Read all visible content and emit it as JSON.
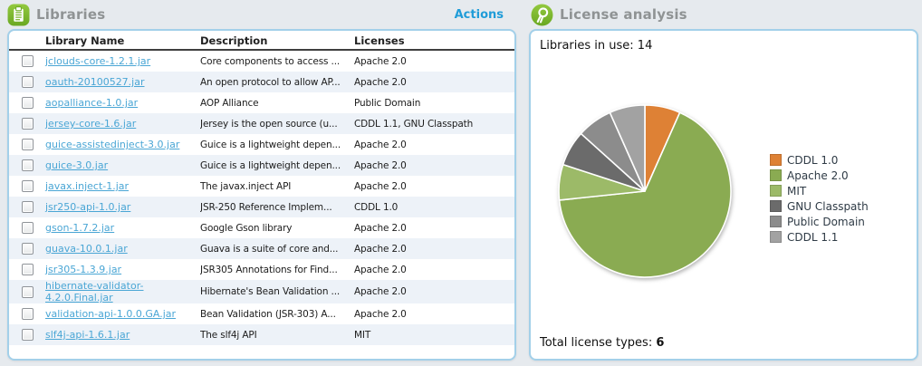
{
  "libraries_panel": {
    "title": "Libraries",
    "actions_label": "Actions",
    "columns": [
      "Library Name",
      "Description",
      "Licenses"
    ],
    "rows": [
      {
        "name": "jclouds-core-1.2.1.jar",
        "description": "Core components to access ...",
        "licenses": "Apache 2.0"
      },
      {
        "name": "oauth-20100527.jar",
        "description": "An open protocol to allow AP...",
        "licenses": "Apache 2.0"
      },
      {
        "name": "aopalliance-1.0.jar",
        "description": "AOP Alliance",
        "licenses": "Public Domain"
      },
      {
        "name": "jersey-core-1.6.jar",
        "description": "Jersey is the open source (u...",
        "licenses": "CDDL 1.1, GNU Classpath"
      },
      {
        "name": "guice-assistedinject-3.0.jar",
        "description": "Guice is a lightweight depen...",
        "licenses": "Apache 2.0"
      },
      {
        "name": "guice-3.0.jar",
        "description": "Guice is a lightweight depen...",
        "licenses": "Apache 2.0"
      },
      {
        "name": "javax.inject-1.jar",
        "description": "The javax.inject API",
        "licenses": "Apache 2.0"
      },
      {
        "name": "jsr250-api-1.0.jar",
        "description": "JSR-250 Reference Implem...",
        "licenses": "CDDL 1.0"
      },
      {
        "name": "gson-1.7.2.jar",
        "description": "Google Gson library",
        "licenses": "Apache 2.0"
      },
      {
        "name": "guava-10.0.1.jar",
        "description": "Guava is a suite of core and...",
        "licenses": "Apache 2.0"
      },
      {
        "name": "jsr305-1.3.9.jar",
        "description": "JSR305 Annotations for Find...",
        "licenses": "Apache 2.0"
      },
      {
        "name": "hibernate-validator-4.2.0.Final.jar",
        "description": "Hibernate's Bean Validation ...",
        "licenses": "Apache 2.0"
      },
      {
        "name": "validation-api-1.0.0.GA.jar",
        "description": "Bean Validation (JSR-303) A...",
        "licenses": "Apache 2.0"
      },
      {
        "name": "slf4j-api-1.6.1.jar",
        "description": "The slf4j API",
        "licenses": "MIT"
      }
    ]
  },
  "license_panel": {
    "title": "License analysis",
    "libraries_in_use_label": "Libraries in use:",
    "libraries_in_use_value": "14",
    "total_label": "Total license types:",
    "total_value": "6"
  },
  "chart_data": {
    "type": "pie",
    "title": "License analysis",
    "labels": [
      "CDDL 1.0",
      "Apache 2.0",
      "MIT",
      "GNU Classpath",
      "Public Domain",
      "CDDL 1.1"
    ],
    "values": [
      1,
      10,
      1,
      1,
      1,
      1
    ],
    "colors": [
      "#DE8135",
      "#8AAB52",
      "#9CBA68",
      "#6B6B6B",
      "#8C8C8C",
      "#A2A2A2"
    ],
    "start_angle_deg": 0,
    "direction": "clockwise",
    "legend_position": "right",
    "separator_color": "#ffffff"
  },
  "ui_colors": {
    "page_background": "#e6eaee",
    "panel_border": "#a3d0e9",
    "link_blue": "#4aa6d5",
    "actions_blue": "#1f9cd8",
    "icon_green": "#7cb62e",
    "row_stripe": "#edf2f8"
  }
}
